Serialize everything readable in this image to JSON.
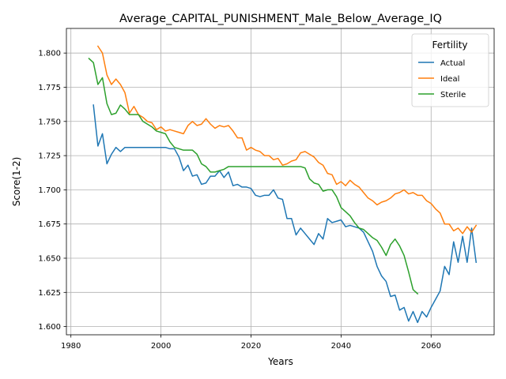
{
  "chart_data": {
    "type": "line",
    "title": "Average_CAPITAL_PUNISHMENT_Male_Below_Average_IQ",
    "xlabel": "Years",
    "ylabel": "Score(1-2)",
    "xlim": [
      1979,
      2074
    ],
    "ylim": [
      1.594,
      1.818
    ],
    "xticks": [
      1980,
      2000,
      2020,
      2040,
      2060
    ],
    "xtick_labels": [
      "1980",
      "2000",
      "2020",
      "2040",
      "2060"
    ],
    "yticks": [
      1.6,
      1.625,
      1.65,
      1.675,
      1.7,
      1.725,
      1.75,
      1.775,
      1.8
    ],
    "ytick_labels": [
      "1.600",
      "1.625",
      "1.650",
      "1.675",
      "1.700",
      "1.725",
      "1.750",
      "1.775",
      "1.800"
    ],
    "grid": true,
    "legend": {
      "title": "Fertility",
      "placement": "top-right"
    },
    "series": [
      {
        "name": "Actual",
        "color": "#1f77b4",
        "x": [
          1985,
          1986,
          1987,
          1988,
          1989,
          1990,
          1991,
          1992,
          1993,
          1994,
          1995,
          1996,
          1997,
          1998,
          1999,
          2000,
          2001,
          2002,
          2003,
          2004,
          2005,
          2006,
          2007,
          2008,
          2009,
          2010,
          2011,
          2012,
          2013,
          2014,
          2015,
          2016,
          2017,
          2018,
          2019,
          2020,
          2021,
          2022,
          2023,
          2024,
          2025,
          2026,
          2027,
          2028,
          2029,
          2030,
          2031,
          2032,
          2033,
          2034,
          2035,
          2036,
          2037,
          2038,
          2039,
          2040,
          2041,
          2042,
          2043,
          2044,
          2045,
          2046,
          2047,
          2048,
          2049,
          2050,
          2051,
          2052,
          2053,
          2054,
          2055,
          2056,
          2057,
          2058,
          2059,
          2060,
          2061,
          2062,
          2063,
          2064,
          2065,
          2066,
          2067,
          2068,
          2069,
          2070
        ],
        "y": [
          1.762,
          1.732,
          1.741,
          1.719,
          1.726,
          1.731,
          1.728,
          1.731,
          1.731,
          1.731,
          1.731,
          1.731,
          1.731,
          1.731,
          1.731,
          1.731,
          1.731,
          1.73,
          1.73,
          1.724,
          1.714,
          1.718,
          1.71,
          1.711,
          1.704,
          1.705,
          1.71,
          1.71,
          1.714,
          1.709,
          1.713,
          1.703,
          1.704,
          1.702,
          1.702,
          1.701,
          1.696,
          1.695,
          1.696,
          1.696,
          1.7,
          1.694,
          1.693,
          1.679,
          1.679,
          1.667,
          1.672,
          1.668,
          1.664,
          1.66,
          1.668,
          1.664,
          1.679,
          1.676,
          1.677,
          1.678,
          1.673,
          1.674,
          1.673,
          1.672,
          1.669,
          1.662,
          1.655,
          1.644,
          1.637,
          1.633,
          1.622,
          1.623,
          1.612,
          1.614,
          1.604,
          1.611,
          1.603,
          1.611,
          1.607,
          1.614,
          1.62,
          1.626,
          1.644,
          1.638,
          1.662,
          1.647,
          1.666,
          1.647,
          1.672,
          1.647
        ]
      },
      {
        "name": "Ideal",
        "color": "#ff7f0e",
        "x": [
          1986,
          1987,
          1988,
          1989,
          1990,
          1991,
          1992,
          1993,
          1994,
          1995,
          1996,
          1997,
          1998,
          1999,
          2000,
          2001,
          2002,
          2003,
          2004,
          2005,
          2006,
          2007,
          2008,
          2009,
          2010,
          2011,
          2012,
          2013,
          2014,
          2015,
          2016,
          2017,
          2018,
          2019,
          2020,
          2021,
          2022,
          2023,
          2024,
          2025,
          2026,
          2027,
          2028,
          2029,
          2030,
          2031,
          2032,
          2033,
          2034,
          2035,
          2036,
          2037,
          2038,
          2039,
          2040,
          2041,
          2042,
          2043,
          2044,
          2045,
          2046,
          2047,
          2048,
          2049,
          2050,
          2051,
          2052,
          2053,
          2054,
          2055,
          2056,
          2057,
          2058,
          2059,
          2060,
          2061,
          2062,
          2063,
          2064,
          2065,
          2066,
          2067,
          2068,
          2069,
          2070
        ],
        "y": [
          1.805,
          1.8,
          1.784,
          1.777,
          1.781,
          1.777,
          1.771,
          1.756,
          1.761,
          1.755,
          1.753,
          1.75,
          1.749,
          1.744,
          1.746,
          1.743,
          1.744,
          1.743,
          1.742,
          1.741,
          1.747,
          1.75,
          1.747,
          1.748,
          1.752,
          1.748,
          1.745,
          1.747,
          1.746,
          1.747,
          1.743,
          1.738,
          1.738,
          1.729,
          1.731,
          1.729,
          1.728,
          1.725,
          1.725,
          1.722,
          1.723,
          1.718,
          1.719,
          1.721,
          1.722,
          1.727,
          1.728,
          1.726,
          1.724,
          1.72,
          1.718,
          1.712,
          1.711,
          1.704,
          1.706,
          1.703,
          1.707,
          1.704,
          1.702,
          1.698,
          1.694,
          1.692,
          1.689,
          1.691,
          1.692,
          1.694,
          1.697,
          1.698,
          1.7,
          1.697,
          1.698,
          1.696,
          1.696,
          1.692,
          1.69,
          1.686,
          1.683,
          1.675,
          1.675,
          1.67,
          1.672,
          1.668,
          1.673,
          1.669,
          1.674
        ]
      },
      {
        "name": "Sterile",
        "color": "#2ca02c",
        "x": [
          1984,
          1985,
          1986,
          1987,
          1988,
          1989,
          1990,
          1991,
          1992,
          1993,
          1994,
          1995,
          1996,
          1997,
          1998,
          1999,
          2000,
          2001,
          2002,
          2003,
          2004,
          2005,
          2006,
          2007,
          2008,
          2009,
          2010,
          2011,
          2012,
          2013,
          2014,
          2015,
          2016,
          2017,
          2018,
          2019,
          2020,
          2021,
          2022,
          2023,
          2024,
          2025,
          2026,
          2027,
          2028,
          2029,
          2030,
          2031,
          2032,
          2033,
          2034,
          2035,
          2036,
          2037,
          2038,
          2039,
          2040,
          2041,
          2042,
          2043,
          2044,
          2045,
          2046,
          2047,
          2048,
          2049,
          2050,
          2051,
          2052,
          2053,
          2054,
          2055,
          2056,
          2057
        ],
        "y": [
          1.796,
          1.793,
          1.777,
          1.782,
          1.763,
          1.755,
          1.756,
          1.762,
          1.759,
          1.755,
          1.755,
          1.755,
          1.75,
          1.748,
          1.746,
          1.743,
          1.742,
          1.741,
          1.735,
          1.731,
          1.73,
          1.729,
          1.729,
          1.729,
          1.726,
          1.719,
          1.717,
          1.713,
          1.713,
          1.714,
          1.715,
          1.717,
          1.717,
          1.717,
          1.717,
          1.717,
          1.717,
          1.717,
          1.717,
          1.717,
          1.717,
          1.717,
          1.717,
          1.717,
          1.717,
          1.717,
          1.717,
          1.717,
          1.716,
          1.708,
          1.705,
          1.704,
          1.699,
          1.7,
          1.7,
          1.695,
          1.687,
          1.684,
          1.681,
          1.676,
          1.672,
          1.671,
          1.668,
          1.665,
          1.663,
          1.658,
          1.652,
          1.66,
          1.664,
          1.659,
          1.652,
          1.64,
          1.627,
          1.624
        ]
      }
    ]
  }
}
